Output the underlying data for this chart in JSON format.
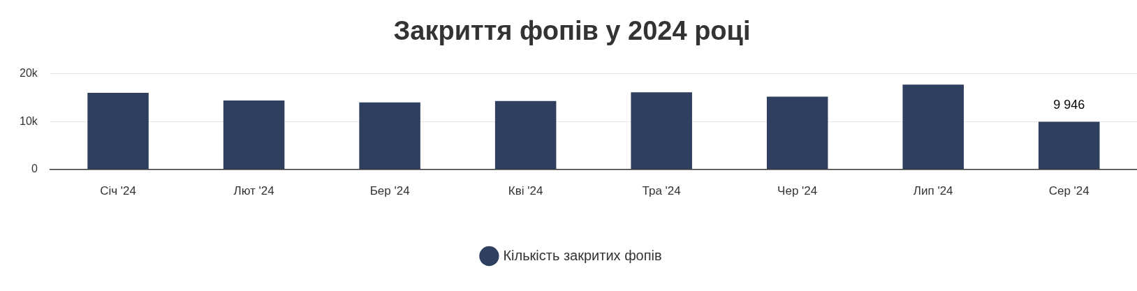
{
  "chart_data": {
    "type": "bar",
    "title": "Закриття фопів у 2024 році",
    "categories": [
      "Січ '24",
      "Лют '24",
      "Бер '24",
      "Кві '24",
      "Тра '24",
      "Чер '24",
      "Лип '24",
      "Сер '24"
    ],
    "series": [
      {
        "name": "Кількість закритих фопів",
        "color": "#2e3f5f",
        "values": [
          16000,
          14400,
          14000,
          14300,
          16100,
          15200,
          17700,
          9946
        ],
        "value_labels": [
          null,
          null,
          null,
          null,
          null,
          null,
          null,
          "9 946"
        ]
      }
    ],
    "ylim": [
      0,
      20000
    ],
    "yticks": [
      0,
      {
        "value": 10000,
        "label": "10k"
      },
      {
        "value": 20000,
        "label": "20k"
      }
    ],
    "grid": "y",
    "legend": "bottom",
    "marker": "circle"
  }
}
